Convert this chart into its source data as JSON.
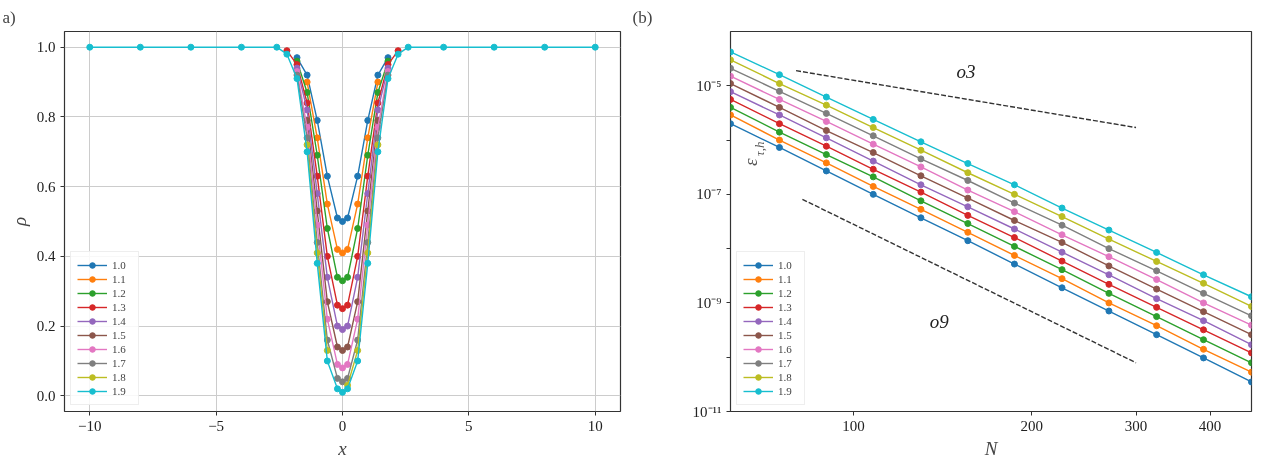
{
  "chart_data": [
    {
      "type": "line",
      "title": "a)",
      "xlabel": "x",
      "ylabel": "ρ",
      "x": [
        -10,
        -8,
        -6,
        -4,
        -2.6,
        -2.2,
        -1.8,
        -1.4,
        -1.0,
        -0.6,
        -0.2,
        0,
        0.2,
        0.6,
        1.0,
        1.4,
        1.8,
        2.2,
        2.6,
        4,
        6,
        8,
        10
      ],
      "series": [
        {
          "name": "1.0",
          "color": "#1f77b4",
          "values": [
            null,
            null,
            null,
            null,
            null,
            null,
            0.97,
            0.92,
            0.79,
            0.63,
            0.51,
            0.5,
            0.51,
            0.63,
            0.79,
            0.92,
            0.97,
            null,
            null,
            null,
            null,
            null,
            null
          ]
        },
        {
          "name": "1.1",
          "color": "#ff7f0e",
          "values": [
            null,
            null,
            null,
            null,
            null,
            null,
            null,
            0.9,
            0.74,
            0.55,
            0.42,
            0.41,
            0.42,
            0.55,
            0.74,
            0.9,
            null,
            null,
            null,
            null,
            null,
            null,
            null
          ]
        },
        {
          "name": "1.2",
          "color": "#2ca02c",
          "values": [
            null,
            null,
            null,
            null,
            null,
            null,
            0.96,
            0.87,
            0.69,
            0.48,
            0.34,
            0.33,
            0.34,
            0.48,
            0.69,
            0.87,
            0.96,
            null,
            null,
            null,
            null,
            null,
            null
          ]
        },
        {
          "name": "1.3",
          "color": "#d62728",
          "values": [
            null,
            null,
            null,
            null,
            null,
            0.99,
            0.95,
            0.84,
            0.63,
            0.4,
            0.26,
            0.25,
            0.26,
            0.4,
            0.63,
            0.84,
            0.95,
            0.99,
            null,
            null,
            null,
            null,
            null
          ]
        },
        {
          "name": "1.4",
          "color": "#9467bd",
          "values": [
            null,
            null,
            null,
            null,
            null,
            null,
            0.94,
            0.82,
            0.58,
            0.34,
            0.2,
            0.19,
            0.2,
            0.34,
            0.58,
            0.82,
            0.94,
            null,
            null,
            null,
            null,
            null,
            null
          ]
        },
        {
          "name": "1.5",
          "color": "#8c564b",
          "values": [
            null,
            null,
            null,
            null,
            null,
            null,
            null,
            0.79,
            0.53,
            0.27,
            0.14,
            0.13,
            0.14,
            0.27,
            0.53,
            0.79,
            null,
            null,
            null,
            null,
            null,
            null,
            null
          ]
        },
        {
          "name": "1.6",
          "color": "#e377c2",
          "values": [
            null,
            null,
            null,
            null,
            null,
            null,
            0.93,
            0.77,
            0.49,
            0.22,
            0.09,
            0.08,
            0.09,
            0.22,
            0.49,
            0.77,
            0.93,
            null,
            null,
            null,
            null,
            null,
            null
          ]
        },
        {
          "name": "1.7",
          "color": "#7f7f7f",
          "values": [
            null,
            null,
            null,
            null,
            null,
            null,
            0.92,
            0.74,
            0.44,
            0.16,
            0.05,
            0.04,
            0.05,
            0.16,
            0.44,
            0.74,
            0.92,
            null,
            null,
            null,
            null,
            null,
            null
          ]
        },
        {
          "name": "1.8",
          "color": "#bcbd22",
          "values": [
            null,
            null,
            null,
            null,
            null,
            null,
            null,
            0.72,
            0.41,
            0.13,
            null,
            null,
            0.03,
            0.13,
            0.41,
            0.72,
            null,
            null,
            null,
            null,
            null,
            null,
            null
          ]
        },
        {
          "name": "1.9",
          "color": "#17becf",
          "values": [
            1,
            1,
            1,
            1,
            1,
            0.98,
            0.91,
            0.7,
            0.38,
            0.1,
            0.02,
            0.01,
            0.02,
            0.1,
            0.38,
            0.7,
            0.91,
            0.98,
            1,
            1,
            1,
            1,
            1
          ]
        }
      ],
      "xlim": [
        -11,
        11
      ],
      "ylim": [
        -0.045,
        1.045
      ],
      "xticks": [
        {
          "value": -10,
          "label": "−10"
        },
        {
          "value": -5,
          "label": "−5"
        },
        0,
        5,
        10
      ],
      "yticks": [
        {
          "value": 0,
          "label": "0.0"
        },
        0.2,
        0.4,
        0.6,
        0.8,
        {
          "value": 1,
          "label": "1.0"
        }
      ],
      "grid": true,
      "legend": "bottom left",
      "marker": "circle",
      "line_style": "solid"
    },
    {
      "type": "line",
      "title": "(b)",
      "xlabel": "N",
      "ylabel": "ε$_{τ,h}$",
      "x": [
        62,
        75,
        90,
        108,
        130,
        156,
        187,
        225,
        270,
        325,
        390,
        470
      ],
      "series": [
        {
          "name": "1.0",
          "color": "#1f77b4",
          "values": [
            2e-06,
            7.3e-07,
            2.7e-07,
            1e-07,
            3.7e-08,
            1.4e-08,
            5.2e-09,
            1.9e-09,
            7.1e-10,
            2.6e-10,
            9.7e-11,
            3.5e-11
          ]
        },
        {
          "name": "1.1",
          "color": "#ff7f0e",
          "values": [
            2.9e-06,
            1e-06,
            3.8e-07,
            1.4e-07,
            5.3e-08,
            2e-08,
            7.5e-09,
            2.8e-09,
            1e-09,
            3.8e-10,
            1.4e-10,
            5.3e-11
          ]
        },
        {
          "name": "1.2",
          "color": "#2ca02c",
          "values": [
            4e-06,
            1.4e-06,
            5.4e-07,
            2.1e-07,
            7.6e-08,
            2.9e-08,
            1.1e-08,
            4.1e-09,
            1.5e-09,
            5.6e-10,
            2.1e-10,
            7.9e-11
          ]
        },
        {
          "name": "1.3",
          "color": "#d62728",
          "values": [
            5.6e-06,
            2e-06,
            7.7e-07,
            2.9e-07,
            1.1e-07,
            4.1e-08,
            1.6e-08,
            5.9e-09,
            2.2e-09,
            8.3e-10,
            3.2e-10,
            1.2e-10
          ]
        },
        {
          "name": "1.4",
          "color": "#9467bd",
          "values": [
            7.8e-06,
            2.9e-06,
            1.1e-06,
            4.1e-07,
            1.5e-07,
            5.9e-08,
            2.3e-08,
            8.6e-09,
            3.3e-09,
            1.2e-09,
            4.7e-10,
            1.7e-10
          ]
        },
        {
          "name": "1.5",
          "color": "#8c564b",
          "values": [
            1.1e-05,
            4e-06,
            1.5e-06,
            5.9e-07,
            2.2e-07,
            8.5e-08,
            3.3e-08,
            1.3e-08,
            4.8e-09,
            1.8e-09,
            6.9e-10,
            2.6e-10
          ]
        },
        {
          "name": "1.6",
          "color": "#e377c2",
          "values": [
            1.5e-05,
            5.6e-06,
            2.2e-06,
            8.4e-07,
            3.2e-07,
            1.2e-07,
            4.8e-08,
            1.8e-08,
            7.1e-09,
            2.7e-09,
            1e-09,
            3.9e-10
          ]
        },
        {
          "name": "1.7",
          "color": "#7f7f7f",
          "values": [
            2.1e-05,
            7.9e-06,
            3.1e-06,
            1.2e-06,
            4.5e-07,
            1.8e-07,
            6.9e-08,
            2.7e-08,
            1e-08,
            3.9e-09,
            1.5e-09,
            5.8e-10
          ]
        },
        {
          "name": "1.8",
          "color": "#bcbd22",
          "values": [
            3e-05,
            1.1e-05,
            4.4e-06,
            1.7e-06,
            6.5e-07,
            2.5e-07,
            1e-07,
            3.9e-08,
            1.5e-08,
            5.8e-09,
            2.3e-09,
            8.6e-10
          ]
        },
        {
          "name": "1.9",
          "color": "#17becf",
          "values": [
            4.2e-05,
            1.6e-05,
            6.2e-06,
            2.4e-06,
            9.3e-07,
            3.7e-07,
            1.5e-07,
            5.6e-08,
            2.2e-08,
            8.5e-09,
            3.3e-09,
            1.3e-09
          ]
        },
        {
          "type": "line",
          "name": "o3",
          "color": "#333333",
          "x": [
            80,
            300
          ],
          "values": [
            1.9e-05,
            1.7e-06
          ],
          "marker": "none",
          "line_style": "dashed"
        },
        {
          "type": "line",
          "name": "o9",
          "color": "#333333",
          "x": [
            82,
            300
          ],
          "values": [
            8.1e-08,
            7.9e-11
          ],
          "marker": "none",
          "line_style": "dashed"
        }
      ],
      "xlim": [
        62,
        470
      ],
      "ylim": [
        1e-11,
        0.0001
      ],
      "xticks": [
        100,
        200,
        300,
        400
      ],
      "yticks": [
        {
          "value": 1e-11,
          "label": "10⁻¹¹"
        },
        {
          "value": 1e-10,
          "label": null
        },
        {
          "value": 1e-09,
          "label": "10⁻⁹"
        },
        {
          "value": 1e-08,
          "label": null
        },
        {
          "value": 1e-07,
          "label": "10⁻⁷"
        },
        {
          "value": 1e-06,
          "label": null
        },
        {
          "value": 1e-05,
          "label": "10⁻⁵"
        }
      ],
      "log": "xy",
      "grid": false,
      "legend": "bottom left",
      "marker": "circle",
      "line_style": "solid"
    }
  ]
}
